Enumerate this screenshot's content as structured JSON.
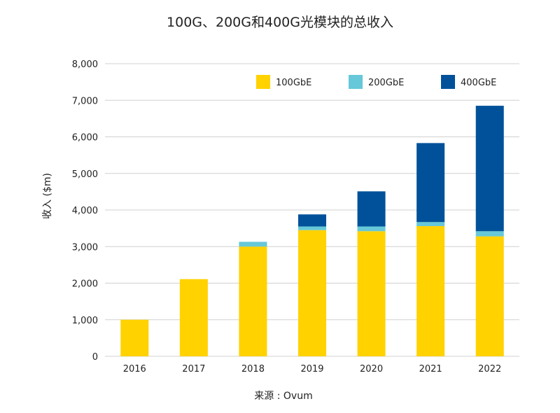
{
  "chart_data": {
    "type": "bar",
    "stacked": true,
    "title": "100G、200G和400G光模块的总收入",
    "xlabel": "",
    "ylabel": "收入 ($m)",
    "source": "来源 : Ovum",
    "categories": [
      "2016",
      "2017",
      "2018",
      "2019",
      "2020",
      "2021",
      "2022"
    ],
    "series": [
      {
        "name": "100GbE",
        "color": "#FFD200",
        "values": [
          1000,
          2110,
          3000,
          3450,
          3420,
          3560,
          3280
        ]
      },
      {
        "name": "200GbE",
        "color": "#66C8D8",
        "values": [
          0,
          0,
          130,
          100,
          130,
          110,
          140
        ]
      },
      {
        "name": "400GbE",
        "color": "#00519A",
        "values": [
          0,
          0,
          0,
          330,
          960,
          2160,
          3430
        ]
      }
    ],
    "ylim": [
      0,
      8000
    ],
    "yticks": [
      0,
      1000,
      2000,
      3000,
      4000,
      5000,
      6000,
      7000,
      8000
    ],
    "ytick_labels": [
      "0",
      "1,000",
      "2,000",
      "3,000",
      "4,000",
      "5,000",
      "6,000",
      "7,000",
      "8,000"
    ],
    "grid": true,
    "legend_position": "top-right"
  }
}
